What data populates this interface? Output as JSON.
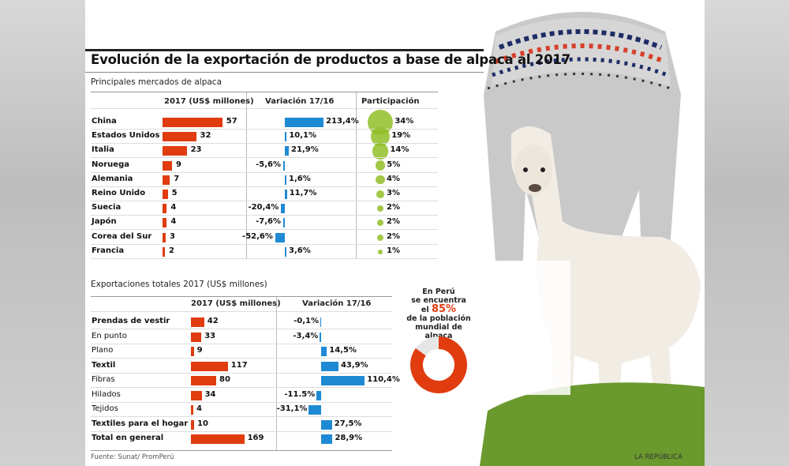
{
  "title": "Evolución de la exportación de productos a base de alpaca al 2017",
  "colors": {
    "value_bar": "#e03c10",
    "variation_bar": "#1f8ad4",
    "share_bubble": "#92be28"
  },
  "chart_data": [
    {
      "type": "table",
      "title": "Principales mercados de alpaca",
      "columns": [
        "",
        "2017 (US$ millones)",
        "Variación 17/16",
        "Participación"
      ],
      "rows": [
        {
          "label": "China",
          "value": 57,
          "variation": 213.4,
          "variation_label": "213,4%",
          "share": 34,
          "share_label": "34%"
        },
        {
          "label": "Estados Unidos",
          "value": 32,
          "variation": 10.1,
          "variation_label": "10,1%",
          "share": 19,
          "share_label": "19%"
        },
        {
          "label": "Italia",
          "value": 23,
          "variation": 21.9,
          "variation_label": "21,9%",
          "share": 14,
          "share_label": "14%"
        },
        {
          "label": "Noruega",
          "value": 9,
          "variation": -5.6,
          "variation_label": "-5,6%",
          "share": 5,
          "share_label": "5%"
        },
        {
          "label": "Alemania",
          "value": 7,
          "variation": 1.6,
          "variation_label": "1,6%",
          "share": 4,
          "share_label": "4%"
        },
        {
          "label": "Reino Unido",
          "value": 5,
          "variation": 11.7,
          "variation_label": "11,7%",
          "share": 3,
          "share_label": "3%"
        },
        {
          "label": "Suecia",
          "value": 4,
          "variation": -20.4,
          "variation_label": "-20,4%",
          "share": 2,
          "share_label": "2%"
        },
        {
          "label": "Japón",
          "value": 4,
          "variation": -7.6,
          "variation_label": "-7,6%",
          "share": 2,
          "share_label": "2%"
        },
        {
          "label": "Corea del Sur",
          "value": 3,
          "variation": -52.6,
          "variation_label": "-52,6%",
          "share": 2,
          "share_label": "2%"
        },
        {
          "label": "Francia",
          "value": 2,
          "variation": 3.6,
          "variation_label": "3,6%",
          "share": 1,
          "share_label": "1%"
        }
      ]
    },
    {
      "type": "table",
      "title": "Exportaciones totales 2017 (US$ millones)",
      "columns": [
        "",
        "2017 (US$ millones)",
        "Variación 17/16"
      ],
      "rows": [
        {
          "label": "Prendas de vestir",
          "bold": true,
          "value": 42,
          "variation": -0.1,
          "variation_label": "-0,1%"
        },
        {
          "label": "En punto",
          "bold": false,
          "value": 33,
          "variation": -3.4,
          "variation_label": "-3,4%"
        },
        {
          "label": "Plano",
          "bold": false,
          "value": 9,
          "variation": 14.5,
          "variation_label": "14,5%"
        },
        {
          "label": "Textil",
          "bold": true,
          "value": 117,
          "variation": 43.9,
          "variation_label": "43,9%"
        },
        {
          "label": "Fibras",
          "bold": false,
          "value": 80,
          "variation": 110.4,
          "variation_label": "110,4%"
        },
        {
          "label": "Hilados",
          "bold": false,
          "value": 34,
          "variation": -11.5,
          "variation_label": "-11.5%"
        },
        {
          "label": "Tejidos",
          "bold": false,
          "value": 4,
          "variation": -31.1,
          "variation_label": "-31,1%"
        },
        {
          "label": "Textiles para el hogar",
          "bold": true,
          "value": 10,
          "variation": 27.5,
          "variation_label": "27,5%"
        },
        {
          "label": "Total en general",
          "bold": true,
          "value": 169,
          "variation": 28.9,
          "variation_label": "28,9%"
        }
      ]
    },
    {
      "type": "pie",
      "values": [
        85,
        15
      ],
      "note_lines": [
        "En Perú",
        "se encuentra",
        "el",
        "85%",
        "de la población",
        "mundial de alpaca"
      ]
    }
  ],
  "footer": {
    "source": "Fuente: Sunat/ PromPerú",
    "brand": "LA REPÚBLICA"
  },
  "images": [
    "alpaca-wool-sweater",
    "white-alpaca",
    "grass"
  ]
}
